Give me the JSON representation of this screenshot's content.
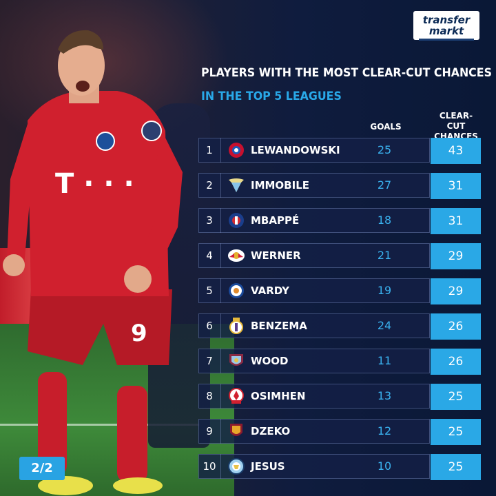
{
  "header": {
    "logo_line1": "transfer",
    "logo_line2": "markt",
    "title": "PLAYERS WITH THE MOST CLEAR-CUT CHANCES",
    "subtitle": "IN THE TOP 5 LEAGUES"
  },
  "columns": {
    "goals": "GOALS",
    "ccc_line1": "CLEAR-CUT",
    "ccc_line2": "CHANCES"
  },
  "colors": {
    "accent": "#2aa8e6",
    "goals_text": "#3ab2ef",
    "bayern_red": "#d0202e"
  },
  "rows": [
    {
      "rank": "1",
      "name": "LEWANDOWSKI",
      "goals": "25",
      "chances": "43",
      "crest": "bayern-crest-icon"
    },
    {
      "rank": "2",
      "name": "IMMOBILE",
      "goals": "27",
      "chances": "31",
      "crest": "lazio-crest-icon"
    },
    {
      "rank": "3",
      "name": "MBAPPÉ",
      "goals": "18",
      "chances": "31",
      "crest": "psg-crest-icon"
    },
    {
      "rank": "4",
      "name": "WERNER",
      "goals": "21",
      "chances": "29",
      "crest": "leipzig-crest-icon"
    },
    {
      "rank": "5",
      "name": "VARDY",
      "goals": "19",
      "chances": "29",
      "crest": "leicester-crest-icon"
    },
    {
      "rank": "6",
      "name": "BENZEMA",
      "goals": "24",
      "chances": "26",
      "crest": "real-madrid-crest-icon"
    },
    {
      "rank": "7",
      "name": "WOOD",
      "goals": "11",
      "chances": "26",
      "crest": "burnley-crest-icon"
    },
    {
      "rank": "8",
      "name": "OSIMHEN",
      "goals": "13",
      "chances": "25",
      "crest": "lille-crest-icon"
    },
    {
      "rank": "9",
      "name": "DZEKO",
      "goals": "12",
      "chances": "25",
      "crest": "roma-crest-icon"
    },
    {
      "rank": "10",
      "name": "JESUS",
      "goals": "10",
      "chances": "25",
      "crest": "man-city-crest-icon"
    }
  ],
  "page_indicator": "2/2"
}
